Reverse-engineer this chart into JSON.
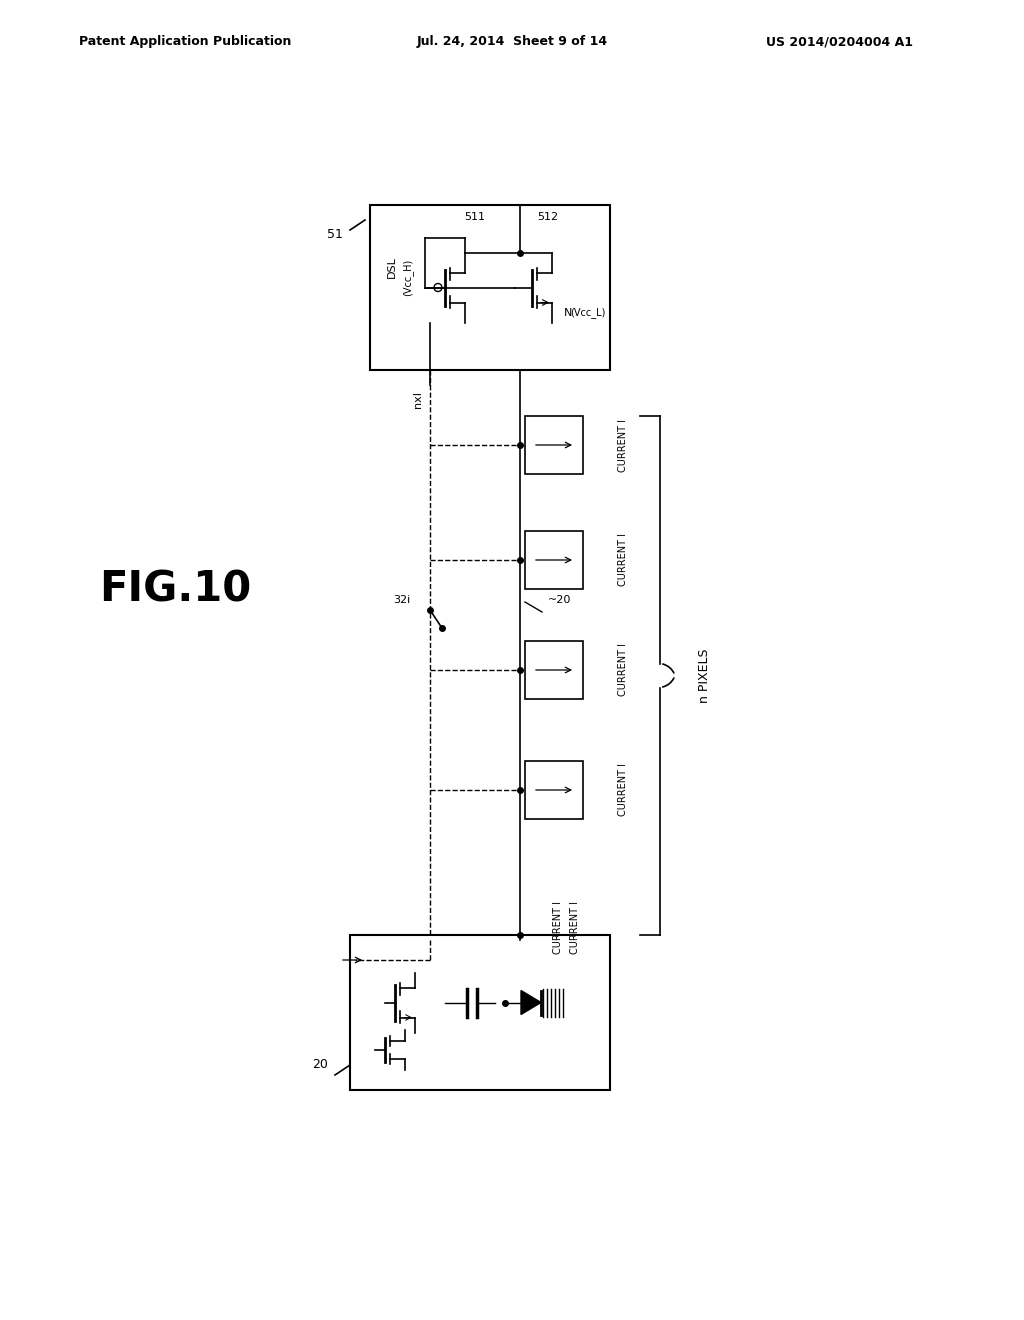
{
  "header_left": "Patent Application Publication",
  "header_center": "Jul. 24, 2014  Sheet 9 of 14",
  "header_right": "US 2014/0204004 A1",
  "fig_label": "FIG.10",
  "background_color": "#ffffff",
  "line_color": "#000000"
}
